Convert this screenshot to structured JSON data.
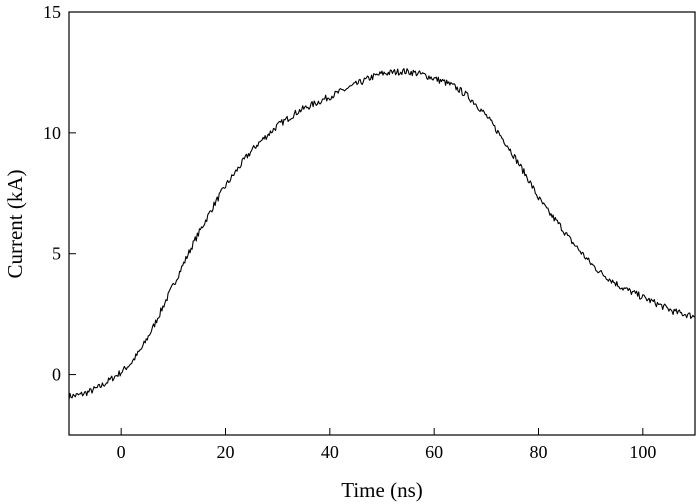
{
  "chart_data": {
    "type": "line",
    "title": "",
    "xlabel": "Time (ns)",
    "ylabel": "Current (kA)",
    "xlim": [
      -10,
      110
    ],
    "ylim": [
      -2.5,
      15
    ],
    "xticks": [
      0,
      20,
      40,
      60,
      80,
      100
    ],
    "xtick_labels": [
      "0",
      "20",
      "40",
      "60",
      "80",
      "100"
    ],
    "yticks": [
      0,
      5,
      10,
      15
    ],
    "ytick_labels": [
      "0",
      "5",
      "10",
      "15"
    ],
    "grid": false,
    "legend": "none",
    "line_color": "#000000",
    "series": [
      {
        "x": [
          -10,
          -8,
          -6,
          -4,
          -2,
          0,
          2,
          4,
          6,
          8,
          10,
          12,
          14,
          16,
          18,
          20,
          22,
          24,
          26,
          28,
          30,
          32,
          34,
          36,
          38,
          40,
          42,
          44,
          46,
          48,
          50,
          52,
          54,
          56,
          58,
          60,
          62,
          64,
          66,
          68,
          70,
          72,
          74,
          76,
          78,
          80,
          82,
          84,
          86,
          88,
          90,
          92,
          94,
          96,
          98,
          100,
          102,
          104,
          106,
          108,
          110
        ],
        "values": [
          -0.9,
          -0.85,
          -0.7,
          -0.5,
          -0.2,
          0.1,
          0.5,
          1.1,
          1.9,
          2.8,
          3.7,
          4.6,
          5.5,
          6.3,
          7.1,
          7.8,
          8.4,
          9.0,
          9.5,
          9.9,
          10.3,
          10.6,
          10.9,
          11.1,
          11.3,
          11.5,
          11.7,
          11.9,
          12.1,
          12.3,
          12.45,
          12.5,
          12.55,
          12.5,
          12.4,
          12.25,
          12.1,
          11.9,
          11.6,
          11.2,
          10.7,
          10.1,
          9.5,
          8.8,
          8.1,
          7.3,
          6.7,
          6.2,
          5.6,
          5.1,
          4.6,
          4.2,
          3.9,
          3.6,
          3.4,
          3.2,
          3.0,
          2.8,
          2.6,
          2.5,
          2.4
        ]
      }
    ]
  }
}
